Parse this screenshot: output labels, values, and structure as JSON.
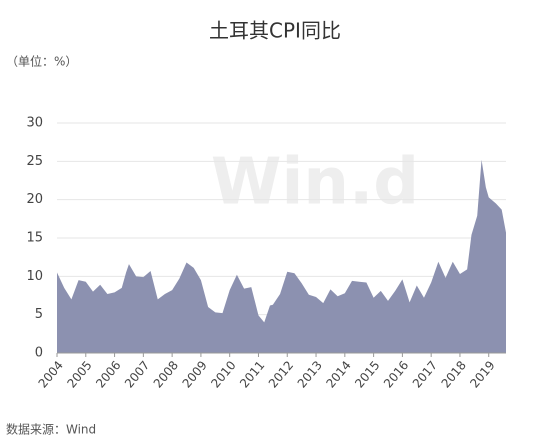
{
  "chart_data": {
    "type": "area",
    "title": "土耳其CPI同比",
    "subtitle": "（单位：%）",
    "source": "数据来源：Wind",
    "watermark": "Win.d",
    "x": [
      2004.0,
      2004.25,
      2004.5,
      2004.75,
      2005.0,
      2005.25,
      2005.5,
      2005.75,
      2006.0,
      2006.25,
      2006.4,
      2006.5,
      2006.75,
      2007.0,
      2007.25,
      2007.5,
      2007.75,
      2008.0,
      2008.25,
      2008.5,
      2008.75,
      2009.0,
      2009.25,
      2009.5,
      2009.75,
      2010.0,
      2010.25,
      2010.5,
      2010.75,
      2011.0,
      2011.2,
      2011.4,
      2011.5,
      2011.75,
      2012.0,
      2012.25,
      2012.5,
      2012.75,
      2013.0,
      2013.25,
      2013.5,
      2013.75,
      2014.0,
      2014.25,
      2014.5,
      2014.75,
      2015.0,
      2015.25,
      2015.5,
      2015.75,
      2016.0,
      2016.25,
      2016.5,
      2016.75,
      2017.0,
      2017.25,
      2017.5,
      2017.75,
      2018.0,
      2018.25,
      2018.4,
      2018.6,
      2018.75,
      2018.9,
      2019.0,
      2019.25,
      2019.45,
      2019.6
    ],
    "values": [
      10.5,
      8.5,
      7.0,
      9.5,
      9.3,
      8.0,
      8.9,
      7.7,
      7.9,
      8.5,
      10.5,
      11.6,
      10.0,
      9.9,
      10.7,
      7.0,
      7.7,
      8.2,
      9.7,
      11.8,
      11.1,
      9.5,
      6.0,
      5.3,
      5.2,
      8.2,
      10.2,
      8.4,
      8.6,
      4.9,
      4.0,
      6.2,
      6.3,
      7.7,
      10.6,
      10.4,
      9.1,
      7.6,
      7.3,
      6.5,
      8.3,
      7.4,
      7.8,
      9.4,
      9.3,
      9.2,
      7.2,
      8.1,
      6.8,
      8.1,
      9.6,
      6.6,
      8.8,
      7.2,
      9.2,
      11.9,
      9.8,
      11.9,
      10.3,
      10.9,
      15.4,
      17.9,
      25.2,
      21.6,
      20.3,
      19.5,
      18.7,
      15.7
    ],
    "color": "#8c91b0",
    "xlim": [
      2004,
      2019.6
    ],
    "xticks": [
      2004,
      2005,
      2006,
      2007,
      2008,
      2009,
      2010,
      2011,
      2012,
      2013,
      2014,
      2015,
      2016,
      2017,
      2018,
      2019
    ],
    "ylim": [
      0,
      30
    ],
    "yticks": [
      0,
      5,
      10,
      15,
      20,
      25,
      30
    ],
    "grid": true
  }
}
